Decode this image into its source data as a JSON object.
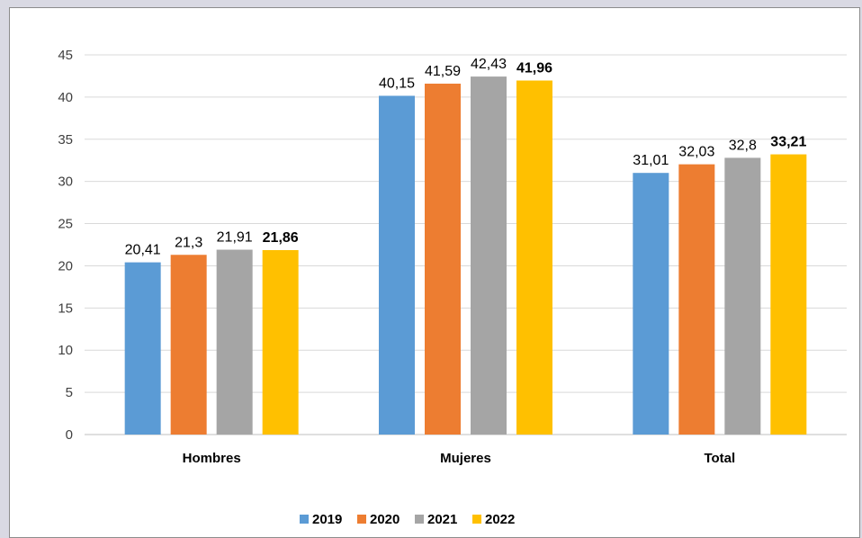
{
  "chart_data": {
    "type": "bar",
    "categories": [
      "Hombres",
      "Mujeres",
      "Total"
    ],
    "series": [
      {
        "name": "2019",
        "values": [
          20.41,
          40.15,
          31.01
        ],
        "labels": [
          "20,41",
          "40,15",
          "31,01"
        ],
        "color": "#5b9bd5",
        "bold": false
      },
      {
        "name": "2020",
        "values": [
          21.3,
          41.59,
          32.03
        ],
        "labels": [
          "21,3",
          "41,59",
          "32,03"
        ],
        "color": "#ed7d31",
        "bold": false
      },
      {
        "name": "2021",
        "values": [
          21.91,
          42.43,
          32.8
        ],
        "labels": [
          "21,91",
          "42,43",
          "32,8"
        ],
        "color": "#a5a5a5",
        "bold": false
      },
      {
        "name": "2022",
        "values": [
          21.86,
          41.96,
          33.21
        ],
        "labels": [
          "21,86",
          "41,96",
          "33,21"
        ],
        "color": "#ffc000",
        "bold": true
      }
    ],
    "ylim": [
      0,
      45
    ],
    "yticks": [
      0,
      5,
      10,
      15,
      20,
      25,
      30,
      35,
      40,
      45
    ],
    "grid": true,
    "legend_position": "bottom"
  }
}
